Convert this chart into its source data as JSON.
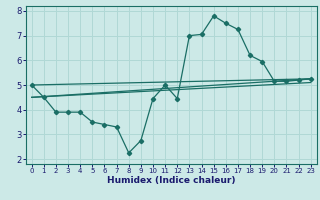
{
  "title": "",
  "xlabel": "Humidex (Indice chaleur)",
  "ylabel": "",
  "bg_color": "#cce9e7",
  "grid_color": "#b0d8d5",
  "line_color": "#1a6e65",
  "xlim": [
    -0.5,
    23.5
  ],
  "ylim": [
    1.8,
    8.2
  ],
  "yticks": [
    2,
    3,
    4,
    5,
    6,
    7,
    8
  ],
  "xticks": [
    0,
    1,
    2,
    3,
    4,
    5,
    6,
    7,
    8,
    9,
    10,
    11,
    12,
    13,
    14,
    15,
    16,
    17,
    18,
    19,
    20,
    21,
    22,
    23
  ],
  "line1_x": [
    0,
    1,
    2,
    3,
    4,
    5,
    6,
    7,
    8,
    9,
    10,
    11,
    12,
    13,
    14,
    15,
    16,
    17,
    18,
    19,
    20,
    21,
    22,
    23
  ],
  "line1_y": [
    5.0,
    4.5,
    3.9,
    3.9,
    3.9,
    3.5,
    3.4,
    3.3,
    2.25,
    2.75,
    4.45,
    5.0,
    4.45,
    7.0,
    7.05,
    7.8,
    7.5,
    7.25,
    6.2,
    5.95,
    5.15,
    5.15,
    5.2,
    5.25
  ],
  "line2_x": [
    0,
    23
  ],
  "line2_y": [
    5.0,
    5.25
  ],
  "line3_x": [
    0,
    23
  ],
  "line3_y": [
    4.5,
    5.25
  ],
  "line4_x": [
    0,
    23
  ],
  "line4_y": [
    4.5,
    5.1
  ],
  "xlabel_fontsize": 6.5,
  "xlabel_color": "#1a1a6e",
  "tick_fontsize": 5.0,
  "tick_color": "#1a1a6e"
}
